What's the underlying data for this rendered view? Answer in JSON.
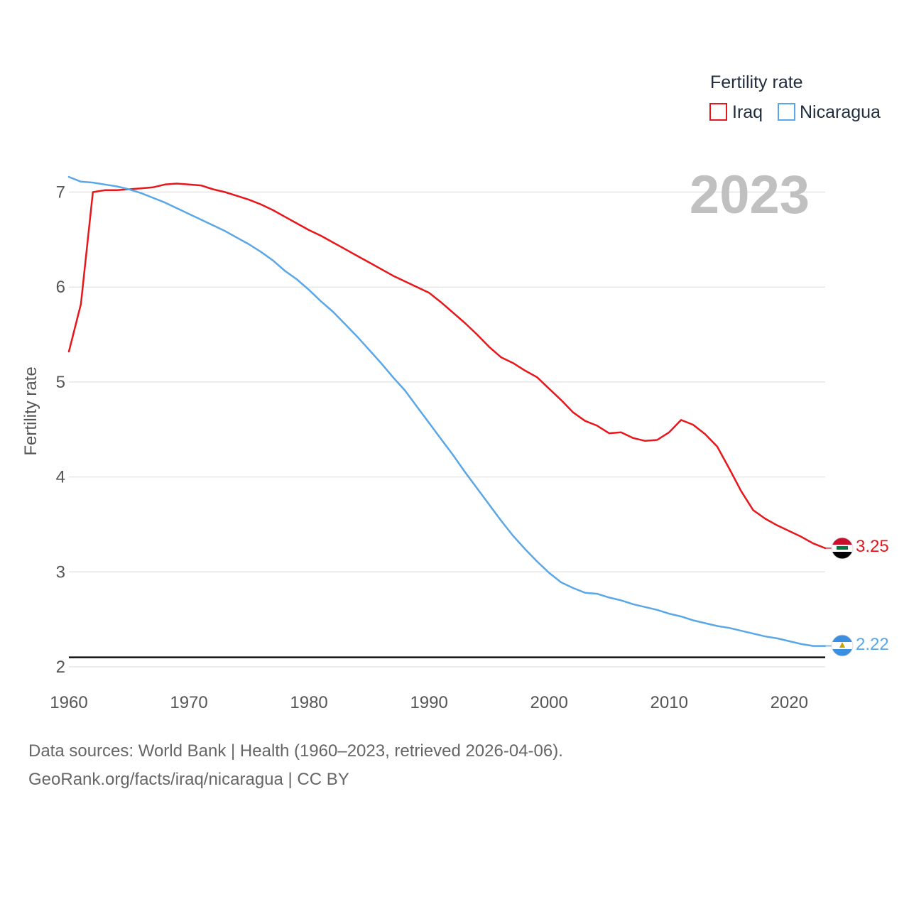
{
  "chart_data": {
    "type": "line",
    "title": "Fertility rate",
    "ylabel": "Fertility rate",
    "xlabel": "",
    "current_year": "2023",
    "xlim": [
      1960,
      2023
    ],
    "ylim": [
      2,
      7.5
    ],
    "x_ticks": [
      1960,
      1970,
      1980,
      1990,
      2000,
      2010,
      2020
    ],
    "y_ticks": [
      2,
      3,
      4,
      5,
      6,
      7
    ],
    "reference_line": 2.1,
    "grid": true,
    "legend_position": "top-right",
    "x": [
      1960,
      1961,
      1962,
      1963,
      1964,
      1965,
      1966,
      1967,
      1968,
      1969,
      1970,
      1971,
      1972,
      1973,
      1974,
      1975,
      1976,
      1977,
      1978,
      1979,
      1980,
      1981,
      1982,
      1983,
      1984,
      1985,
      1986,
      1987,
      1988,
      1989,
      1990,
      1991,
      1992,
      1993,
      1994,
      1995,
      1996,
      1997,
      1998,
      1999,
      2000,
      2001,
      2002,
      2003,
      2004,
      2005,
      2006,
      2007,
      2008,
      2009,
      2010,
      2011,
      2012,
      2013,
      2014,
      2015,
      2016,
      2017,
      2018,
      2019,
      2020,
      2021,
      2022,
      2023
    ],
    "series": [
      {
        "name": "Iraq",
        "color": "#e8161a",
        "end_label": "3.25",
        "flag": "iraq-flag-icon",
        "values": [
          5.32,
          5.82,
          7.0,
          7.02,
          7.02,
          7.03,
          7.04,
          7.05,
          7.08,
          7.09,
          7.08,
          7.07,
          7.03,
          7.0,
          6.96,
          6.92,
          6.87,
          6.81,
          6.74,
          6.67,
          6.6,
          6.54,
          6.47,
          6.4,
          6.33,
          6.26,
          6.19,
          6.12,
          6.06,
          6.0,
          5.94,
          5.84,
          5.73,
          5.62,
          5.5,
          5.37,
          5.26,
          5.2,
          5.12,
          5.05,
          4.93,
          4.81,
          4.68,
          4.59,
          4.54,
          4.46,
          4.47,
          4.41,
          4.38,
          4.39,
          4.47,
          4.6,
          4.55,
          4.45,
          4.32,
          4.09,
          3.85,
          3.65,
          3.56,
          3.49,
          3.43,
          3.37,
          3.3,
          3.25
        ]
      },
      {
        "name": "Nicaragua",
        "color": "#5aa7e8",
        "end_label": "2.22",
        "flag": "nicaragua-flag-icon",
        "values": [
          7.16,
          7.11,
          7.1,
          7.08,
          7.06,
          7.03,
          6.99,
          6.94,
          6.89,
          6.83,
          6.77,
          6.71,
          6.65,
          6.59,
          6.52,
          6.45,
          6.37,
          6.28,
          6.17,
          6.08,
          5.97,
          5.85,
          5.74,
          5.61,
          5.48,
          5.34,
          5.2,
          5.05,
          4.91,
          4.74,
          4.57,
          4.4,
          4.23,
          4.05,
          3.88,
          3.71,
          3.54,
          3.38,
          3.24,
          3.11,
          2.99,
          2.89,
          2.83,
          2.78,
          2.77,
          2.73,
          2.7,
          2.66,
          2.63,
          2.6,
          2.56,
          2.53,
          2.49,
          2.46,
          2.43,
          2.41,
          2.38,
          2.35,
          2.32,
          2.3,
          2.27,
          2.24,
          2.22,
          2.22
        ]
      }
    ]
  },
  "source": {
    "line1": "Data sources: World Bank | Health (1960–2023, retrieved 2026-04-06).",
    "line2": "GeoRank.org/facts/iraq/nicaragua | CC BY"
  }
}
